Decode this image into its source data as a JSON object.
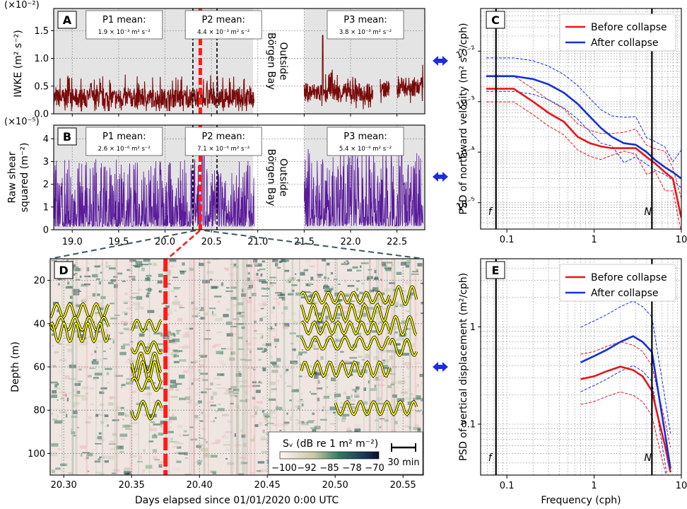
{
  "chart_data": [
    {
      "panel": "A",
      "type": "line",
      "ylabel": "IWKE (m² s⁻²)",
      "multiplier": "(×10⁻²)",
      "xlim": [
        18.8,
        22.8
      ],
      "ylim": [
        0,
        1.9
      ],
      "xticks": [
        "19.0",
        "19.5",
        "20.0",
        "20.5",
        "21.0",
        "21.5",
        "22.0",
        "22.5"
      ],
      "yticks": [
        "0.0",
        "0.5",
        "1.0",
        "1.5"
      ],
      "series_color": "#7a0a0a",
      "periods": [
        {
          "label": "P1 mean:",
          "value": "1.9 × 10⁻³ m² s⁻²",
          "x_start": 18.8,
          "x_end": 20.35
        },
        {
          "label": "P2 mean:",
          "value": "4.4 × 10⁻³ m² s⁻²",
          "x_start": 20.35,
          "x_end": 20.95
        },
        {
          "label": "P3 mean:",
          "value": "3.8 × 10⁻³ m² s⁻²",
          "x_start": 21.5,
          "x_end": 22.8
        }
      ],
      "gap_label": [
        "Outside",
        "Börgen Bay"
      ],
      "red_line_x": 20.38,
      "black_dashed_x": [
        20.3,
        20.56
      ],
      "segments": [
        {
          "x_start": 18.8,
          "x_end": 20.96,
          "baseline": 0.25,
          "amplitude": 0.35,
          "peaks": [
            [
              18.95,
              0.7
            ],
            [
              19.2,
              0.55
            ],
            [
              20.45,
              0.6
            ],
            [
              20.85,
              0.65
            ]
          ]
        },
        {
          "x_start": 21.5,
          "x_end": 22.24,
          "baseline": 0.35,
          "amplitude": 0.35,
          "peaks": [
            [
              21.7,
              1.45
            ],
            [
              21.8,
              0.85
            ],
            [
              22.05,
              0.65
            ]
          ]
        },
        {
          "x_start": 22.32,
          "x_end": 22.42,
          "baseline": 0.4,
          "amplitude": 0.3,
          "peaks": []
        },
        {
          "x_start": 22.5,
          "x_end": 22.78,
          "baseline": 0.45,
          "amplitude": 0.35,
          "peaks": [
            [
              22.55,
              0.72
            ],
            [
              22.7,
              0.6
            ]
          ]
        }
      ]
    },
    {
      "panel": "B",
      "type": "line",
      "ylabel": [
        "Raw shear",
        "squared (m⁻²)"
      ],
      "multiplier": "(×10⁻⁵)",
      "xlim": [
        18.8,
        22.8
      ],
      "ylim": [
        0,
        4.6
      ],
      "xticks": [
        "19.0",
        "19.5",
        "20.0",
        "20.5",
        "21.0",
        "21.5",
        "22.0",
        "22.5"
      ],
      "yticks": [
        "0",
        "1",
        "2",
        "3",
        "4"
      ],
      "series_color": "#5a1a9a",
      "periods": [
        {
          "label": "P1 mean:",
          "value": "2.6 × 10⁻⁶ m² s⁻²",
          "x_start": 18.8,
          "x_end": 20.35
        },
        {
          "label": "P2 mean:",
          "value": "7.1 × 10⁻⁶ m² s⁻²",
          "x_start": 20.35,
          "x_end": 20.95
        },
        {
          "label": "P3 mean:",
          "value": "5.4 × 10⁻⁶ m² s⁻²",
          "x_start": 21.5,
          "x_end": 22.8
        }
      ],
      "gap_label": [
        "Outside",
        "Börgen Bay"
      ],
      "red_line_x": 20.38,
      "black_dashed_x": [
        20.3,
        20.56
      ],
      "segments": [
        {
          "x_start": 18.8,
          "x_end": 20.96,
          "baseline": 0.35,
          "amplitude": 1.0,
          "peaks": [
            [
              20.4,
              4.3
            ],
            [
              20.42,
              3.5
            ],
            [
              20.45,
              2.7
            ],
            [
              20.6,
              2.5
            ],
            [
              19.0,
              1.7
            ],
            [
              20.5,
              2.2
            ]
          ]
        },
        {
          "x_start": 21.5,
          "x_end": 22.78,
          "baseline": 0.4,
          "amplitude": 1.2,
          "peaks": [
            [
              21.7,
              3.2
            ],
            [
              22.02,
              4.2
            ],
            [
              22.2,
              3.3
            ],
            [
              22.55,
              4.3
            ],
            [
              22.62,
              3.0
            ],
            [
              21.9,
              2.6
            ]
          ]
        }
      ]
    },
    {
      "panel": "C",
      "type": "line",
      "xscale": "log",
      "yscale": "log",
      "ylabel": "PSD of northward velocity (m² s⁻²/cph)",
      "xlim": [
        0.05,
        10
      ],
      "ylim": [
        3e-06,
        0.07
      ],
      "xticks": [
        "0.1",
        "1",
        "10"
      ],
      "yticks": [
        "10⁻²",
        "10⁻³",
        "10⁻⁴",
        "10⁻⁵"
      ],
      "vlines": [
        {
          "label": "f",
          "x": 0.075
        },
        {
          "label": "N",
          "x": 4.6
        }
      ],
      "series": [
        {
          "name": "Before collapse",
          "color": "#e8141a",
          "x": [
            0.058,
            0.12,
            0.2,
            0.3,
            0.45,
            0.65,
            0.9,
            1.2,
            1.6,
            2.2,
            3.0,
            4.0,
            5.0,
            6.5,
            8.0,
            10.0
          ],
          "y": [
            0.0018,
            0.0018,
            0.001,
            0.0006,
            0.0004,
            0.0002,
            0.00015,
            0.00013,
            0.00012,
            0.00012,
            0.00012,
            8e-05,
            6e-05,
            4e-05,
            3e-05,
            5e-06
          ]
        },
        {
          "name": "After collapse",
          "color": "#1432d6",
          "x": [
            0.058,
            0.12,
            0.2,
            0.3,
            0.45,
            0.65,
            0.9,
            1.2,
            1.6,
            2.2,
            3.0,
            4.0,
            5.0,
            6.5,
            8.0,
            10.0
          ],
          "y": [
            0.0032,
            0.0032,
            0.0028,
            0.0022,
            0.0015,
            0.0009,
            0.0005,
            0.0003,
            0.0002,
            0.00015,
            0.00014,
            0.0001,
            7e-05,
            5e-05,
            4e-05,
            3e-05
          ]
        }
      ],
      "legend": "top-right"
    },
    {
      "panel": "D",
      "type": "heatmap",
      "xlabel": "Days elapsed since 01/01/2020 0:00 UTC",
      "ylabel": "Depth (m)",
      "xlim": [
        20.29,
        20.565
      ],
      "ylim": [
        110,
        10
      ],
      "xticks": [
        "20.30",
        "20.35",
        "20.40",
        "20.45",
        "20.50",
        "20.55"
      ],
      "yticks": [
        "20",
        "40",
        "60",
        "80",
        "100"
      ],
      "colorbar_label": "Sᵥ (dB re 1 m² m⁻²)",
      "colorbar_ticks": [
        "−100",
        "−92",
        "−85",
        "−78",
        "−70"
      ],
      "scalebar_label": "30 min",
      "red_line_x": 20.375,
      "isopycnals": [
        {
          "x_start": 20.29,
          "x_end": 20.333,
          "depths": [
            34,
            40,
            44
          ]
        },
        {
          "x_start": 20.35,
          "x_end": 20.372,
          "depths": [
            41,
            51,
            58,
            62,
            68,
            80
          ]
        },
        {
          "x_start": 20.475,
          "x_end": 20.54,
          "depths": [
            28,
            35,
            42,
            49,
            61
          ]
        },
        {
          "x_start": 20.54,
          "x_end": 20.56,
          "depths": [
            27,
            41,
            51
          ]
        },
        {
          "x_start": 20.5,
          "x_end": 20.56,
          "depths": [
            79
          ]
        }
      ]
    },
    {
      "panel": "E",
      "type": "line",
      "xscale": "log",
      "yscale": "log",
      "xlabel": "Frequency (cph)",
      "ylabel": "PSD of vertical displacement (m²/cph)",
      "xlim": [
        0.05,
        10
      ],
      "ylim": [
        0.03,
        5
      ],
      "xticks": [
        "0.1",
        "1",
        "10"
      ],
      "yticks": [
        "1",
        "0.1"
      ],
      "vlines": [
        {
          "label": "f",
          "x": 0.075
        },
        {
          "label": "N",
          "x": 4.6
        }
      ],
      "series": [
        {
          "name": "Before collapse",
          "color": "#e8141a",
          "x": [
            0.7,
            1.0,
            1.4,
            2.0,
            2.8,
            3.6,
            4.6,
            5.5,
            6.5,
            7.5
          ],
          "y": [
            0.29,
            0.31,
            0.35,
            0.39,
            0.36,
            0.31,
            0.22,
            0.11,
            0.06,
            0.032
          ]
        },
        {
          "name": "After collapse",
          "color": "#1432d6",
          "x": [
            0.7,
            1.0,
            1.4,
            2.0,
            2.8,
            3.6,
            4.6,
            5.5,
            6.5,
            7.5
          ],
          "y": [
            0.43,
            0.5,
            0.58,
            0.7,
            0.8,
            0.7,
            0.55,
            0.2,
            0.08,
            0.035
          ]
        }
      ],
      "legend": "top-right"
    }
  ]
}
